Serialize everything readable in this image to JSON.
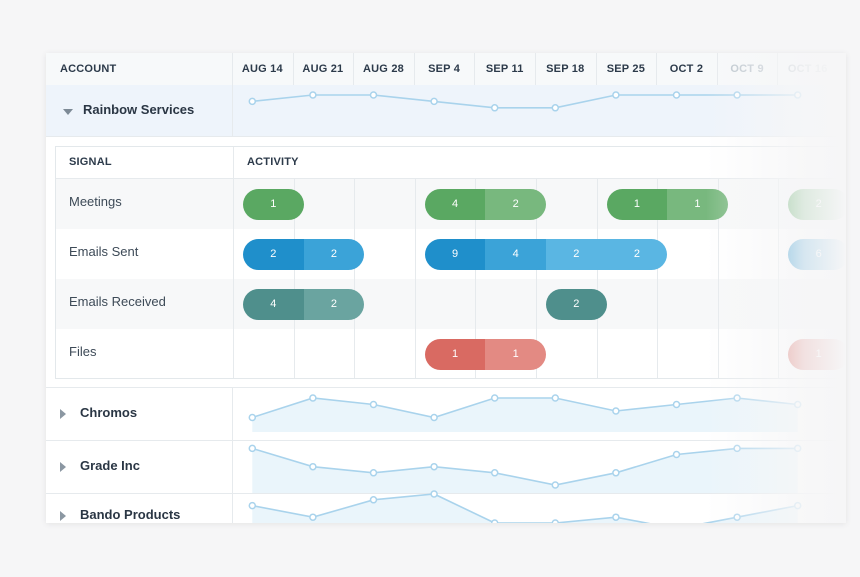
{
  "header": {
    "account_label": "ACCOUNT",
    "weeks": [
      "AUG 14",
      "AUG 21",
      "AUG 28",
      "SEP 4",
      "SEP 11",
      "SEP 18",
      "SEP 25",
      "OCT 2",
      "OCT 9",
      "OCT 16"
    ]
  },
  "accounts": [
    {
      "name": "Rainbow Services",
      "expanded": true,
      "activity": [
        3,
        5,
        5,
        3,
        1,
        1,
        5,
        5,
        5,
        5
      ]
    },
    {
      "name": "Chromos",
      "expanded": false,
      "activity": [
        1,
        4,
        3,
        1,
        4,
        4,
        2,
        3,
        4,
        3
      ]
    },
    {
      "name": "Grade Inc",
      "expanded": false,
      "activity": [
        6,
        3,
        2,
        3,
        2,
        0,
        2,
        5,
        6,
        6
      ]
    },
    {
      "name": "Bando Products",
      "expanded": false,
      "activity": [
        3,
        1,
        4,
        5,
        0,
        0,
        1,
        -1,
        1,
        3
      ]
    }
  ],
  "signal_panel": {
    "signal_label": "SIGNAL",
    "activity_label": "ACTIVITY",
    "signals": [
      {
        "name": "Meetings",
        "values": [
          1,
          null,
          null,
          4,
          2,
          null,
          1,
          1,
          null,
          2
        ],
        "colors": [
          "#5aa862",
          "#78b87e",
          "#95c898"
        ]
      },
      {
        "name": "Emails Sent",
        "values": [
          2,
          2,
          null,
          9,
          4,
          2,
          2,
          null,
          null,
          6
        ],
        "colors": [
          "#1f8fcb",
          "#3ba3d8",
          "#5ab6e3"
        ]
      },
      {
        "name": "Emails Received",
        "values": [
          4,
          2,
          null,
          null,
          null,
          2,
          null,
          null,
          null,
          null
        ],
        "colors": [
          "#4f8f8c",
          "#6aa4a0"
        ]
      },
      {
        "name": "Files",
        "values": [
          null,
          null,
          null,
          1,
          1,
          null,
          null,
          null,
          null,
          1
        ],
        "colors": [
          "#d96a62",
          "#e38a83"
        ]
      }
    ]
  },
  "colors": {
    "accent_blue": "#2f7fc1",
    "line": "#a9d3ec",
    "expanded_bg": "#eef4fb"
  }
}
